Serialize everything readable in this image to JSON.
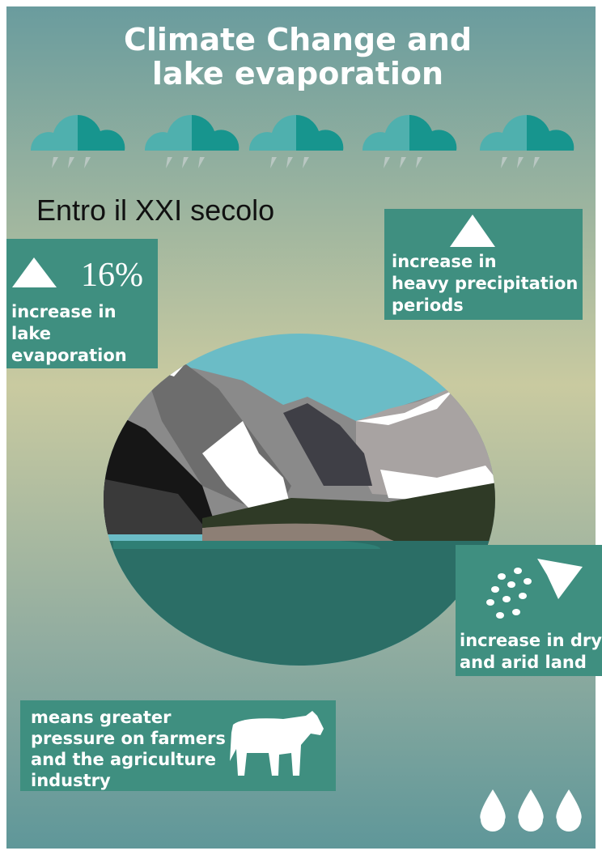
{
  "header": {
    "title_lines": [
      "Climate Change and",
      "lake evaporation"
    ]
  },
  "subtitle": "Entro il XXI secolo",
  "panels": [
    {
      "stat": "16%",
      "text_lines": [
        "increase in",
        "lake",
        "evaporation"
      ]
    },
    {
      "text_lines": [
        "increase in",
        "heavy precipitation",
        "periods"
      ]
    },
    {
      "text_lines": [
        "increase in dry",
        "and arid land"
      ]
    },
    {
      "text_lines": [
        "means greater",
        "pressure on farmers",
        "and the agriculture",
        "industry"
      ]
    }
  ]
}
